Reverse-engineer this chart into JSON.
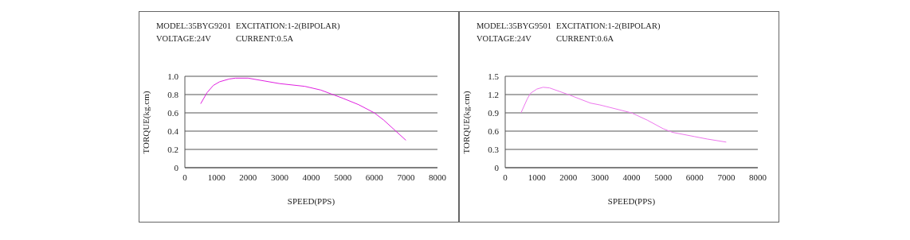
{
  "chart_data": [
    {
      "type": "line",
      "title": "MODEL:35BYG9201",
      "annotations": [
        "EXCITATION:1-2(BIPOLAR)",
        "VOLTAGE:24V",
        "CURRENT:0.5A"
      ],
      "xlabel": "SPEED(PPS)",
      "ylabel": "TORQUE(kg.cm)",
      "x": [
        500,
        700,
        900,
        1100,
        1400,
        1600,
        2000,
        2500,
        3000,
        3800,
        4300,
        5000,
        5500,
        6000,
        6300,
        7000
      ],
      "series": [
        {
          "color": "#e020e0",
          "values": [
            0.7,
            0.82,
            0.9,
            0.94,
            0.97,
            0.98,
            0.98,
            0.95,
            0.92,
            0.89,
            0.85,
            0.76,
            0.69,
            0.6,
            0.52,
            0.3
          ]
        }
      ],
      "xlim": [
        0,
        8000
      ],
      "xticks": [
        0,
        1000,
        2000,
        3000,
        4000,
        5000,
        6000,
        7000,
        8000
      ],
      "ylim": [
        0,
        1
      ],
      "yticks": [
        0,
        0.2,
        0.4,
        0.6,
        0.8,
        {
          "value": 1,
          "label": "1.0"
        }
      ],
      "grid": "y",
      "marker": "none"
    },
    {
      "type": "line",
      "title": "MODEL:35BYG9501",
      "annotations": [
        "EXCITATION:1-2(BIPOLAR)",
        "VOLTAGE:24V",
        "CURRENT:0.6A"
      ],
      "xlabel": "SPEED(PPS)",
      "ylabel": "TORQUE(kg.cm)",
      "x": [
        500,
        700,
        800,
        1000,
        1200,
        1400,
        2000,
        2700,
        3000,
        4000,
        4500,
        5000,
        5300,
        6000,
        6400,
        7000
      ],
      "series": [
        {
          "color": "#ee77ee",
          "values": [
            0.9,
            1.13,
            1.22,
            1.29,
            1.32,
            1.31,
            1.2,
            1.06,
            1.03,
            0.9,
            0.78,
            0.64,
            0.58,
            0.51,
            0.47,
            0.42
          ]
        }
      ],
      "xlim": [
        0,
        8000
      ],
      "xticks": [
        0,
        1000,
        2000,
        3000,
        4000,
        5000,
        6000,
        7000,
        8000
      ],
      "ylim": [
        0,
        1.5
      ],
      "yticks": [
        0,
        0.3,
        0.6,
        0.9,
        1.2,
        1.5
      ],
      "grid": "y",
      "marker": "none"
    }
  ]
}
